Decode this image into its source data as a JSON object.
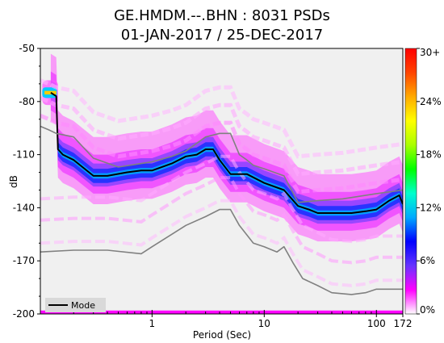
{
  "chart_data": {
    "type": "heatmap",
    "title_line1": "GE.HMDM.--.BHN : 8031 PSDs",
    "title_line2": "01-JAN-2017 / 25-DEC-2017",
    "xlabel": "Period (Sec)",
    "ylabel": "dB",
    "x_scale": "log",
    "xlim": [
      0.101,
      172
    ],
    "ylim": [
      -200,
      -50
    ],
    "x_ticks": [
      1,
      10,
      100,
      172
    ],
    "x_tick_labels": [
      "1",
      "10",
      "100",
      "172"
    ],
    "y_ticks": [
      -200,
      -170,
      -140,
      -110,
      -80,
      -50
    ],
    "y_tick_labels": [
      "-200",
      "-170",
      "-140",
      "-110",
      "-80",
      "-50"
    ],
    "colorbar": {
      "ticks": [
        0,
        6,
        12,
        18,
        24,
        30
      ],
      "tick_labels": [
        "0%",
        "6%",
        "12%",
        "18%",
        "24%",
        "30+"
      ],
      "colors": [
        "#ffffff",
        "#ff00ff",
        "#6633ff",
        "#0000ff",
        "#00aaff",
        "#00ffcc",
        "#00ff00",
        "#aaff00",
        "#ffff00",
        "#ffaa00",
        "#ff4400",
        "#ff0000"
      ]
    },
    "legend": {
      "position": "bottom-left",
      "entries": [
        "Mode"
      ]
    },
    "grid": false,
    "series": [
      {
        "name": "Mode",
        "color": "#000000",
        "x": [
          0.125,
          0.14,
          0.145,
          0.16,
          0.2,
          0.3,
          0.4,
          0.6,
          0.8,
          1.0,
          1.5,
          2.0,
          2.5,
          3.0,
          3.5,
          4.0,
          5.0,
          7.0,
          10,
          15,
          20,
          25,
          30,
          40,
          50,
          60,
          80,
          100,
          130,
          160,
          172
        ],
        "y": [
          -75,
          -77,
          -107,
          -110,
          -113,
          -122,
          -122,
          -120,
          -119,
          -119,
          -115,
          -111,
          -110,
          -107,
          -107,
          -113,
          -121,
          -121,
          -126,
          -130,
          -139,
          -141,
          -143,
          -143,
          -143,
          -143,
          -142,
          -141,
          -136,
          -133,
          -138
        ]
      },
      {
        "color": "#808080",
        "x": [
          0.101,
          0.12,
          0.14,
          0.2,
          0.3,
          0.5,
          0.8,
          1.0,
          1.5,
          2.0,
          3.0,
          4.0,
          5.0,
          6.0,
          7.0,
          8.0,
          10,
          15,
          20,
          30,
          50,
          100,
          172
        ],
        "y": [
          -94,
          -96,
          -98,
          -100,
          -112,
          -117,
          -115,
          -114,
          -111,
          -108,
          -100,
          -98,
          -98,
          -110,
          -113,
          -116,
          -118,
          -122,
          -137,
          -136,
          -135,
          -132,
          -130
        ]
      },
      {
        "color": "#808080",
        "x": [
          0.101,
          0.2,
          0.4,
          0.8,
          1.0,
          1.5,
          2.0,
          3.0,
          4.0,
          5.0,
          6.0,
          8.0,
          10,
          13,
          15,
          18,
          22,
          30,
          40,
          60,
          80,
          100,
          172
        ],
        "y": [
          -165,
          -164,
          -164,
          -166,
          -162,
          -155,
          -150,
          -145,
          -141,
          -141,
          -150,
          -160,
          -162,
          -165,
          -162,
          -171,
          -180,
          -184,
          -188,
          -189,
          -188,
          -186,
          -186
        ]
      },
      {
        "color": "#ff00ff",
        "x": [
          0.101,
          172
        ],
        "y": [
          -199,
          -199
        ]
      }
    ]
  }
}
